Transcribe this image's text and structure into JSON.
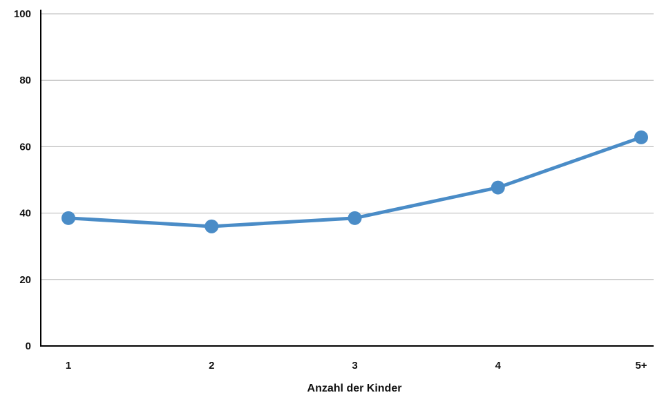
{
  "chart_data": {
    "type": "line",
    "title": "",
    "xlabel": "Anzahl der Kinder",
    "ylabel": "",
    "categories": [
      "1",
      "2",
      "3",
      "4",
      "5+"
    ],
    "series": [
      {
        "values": [
          38.5,
          36,
          38.5,
          47.7,
          62.8
        ],
        "color": "#4a8cc7"
      }
    ],
    "ylim": [
      0,
      100
    ],
    "yticks": [
      0,
      20,
      40,
      60,
      80,
      100
    ],
    "grid": true,
    "legend": "none"
  }
}
